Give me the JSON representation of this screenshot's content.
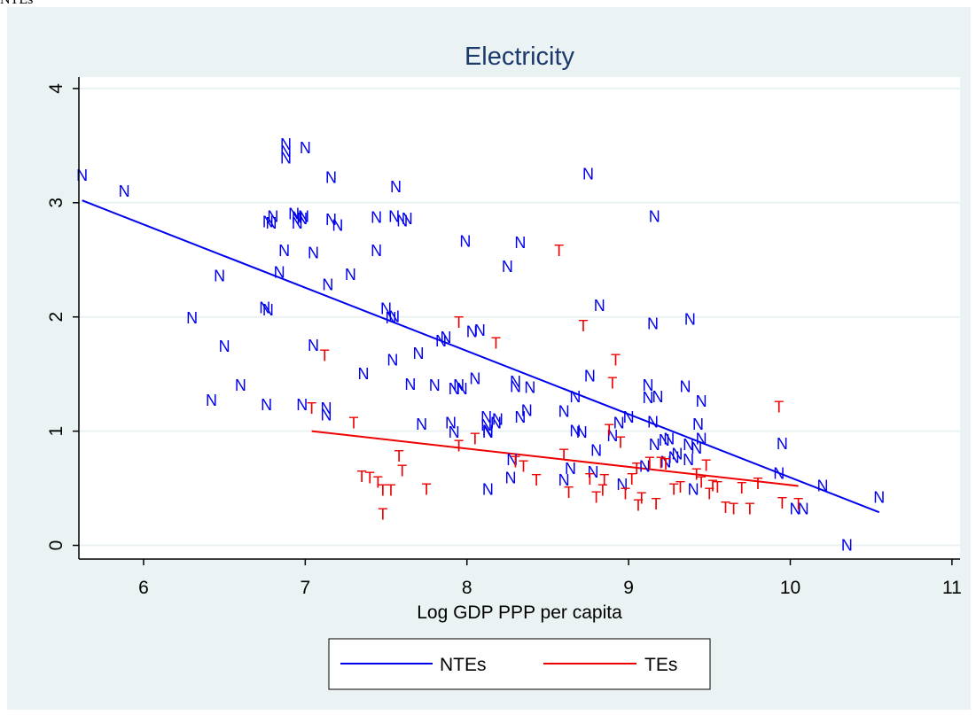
{
  "top_left_text": "NTEs",
  "chart_data": {
    "type": "scatter",
    "title": "Electricity",
    "xlabel": "Log GDP PPP per capita",
    "ylabel": "",
    "xlim": [
      5.6,
      11.05
    ],
    "ylim": [
      -0.12,
      4.1
    ],
    "x_ticks": [
      6,
      7,
      8,
      9,
      10,
      11
    ],
    "y_ticks": [
      0,
      1,
      2,
      3,
      4
    ],
    "grid": true,
    "legend_position": "bottom",
    "colors": {
      "NTEs": "#0000ee",
      "TEs": "#ee0000",
      "plot_region": "#ffffff",
      "outer_background": "#eaf2f3",
      "grid": "#eaf2f3"
    },
    "series": [
      {
        "name": "NTEs",
        "marker": "N",
        "fit_line": {
          "x": [
            5.62,
            10.55
          ],
          "y": [
            3.02,
            0.29
          ]
        },
        "points": [
          [
            5.62,
            3.24
          ],
          [
            5.88,
            3.1
          ],
          [
            6.3,
            1.99
          ],
          [
            6.42,
            1.27
          ],
          [
            6.47,
            2.36
          ],
          [
            6.5,
            1.74
          ],
          [
            6.6,
            1.4
          ],
          [
            6.75,
            2.08
          ],
          [
            6.76,
            1.23
          ],
          [
            6.77,
            2.06
          ],
          [
            6.77,
            2.83
          ],
          [
            6.79,
            2.82
          ],
          [
            6.8,
            2.88
          ],
          [
            6.84,
            2.39
          ],
          [
            6.87,
            2.58
          ],
          [
            6.88,
            3.51
          ],
          [
            6.88,
            3.39
          ],
          [
            6.88,
            3.45
          ],
          [
            6.93,
            2.9
          ],
          [
            6.95,
            2.82
          ],
          [
            6.95,
            2.87
          ],
          [
            6.98,
            1.23
          ],
          [
            6.98,
            2.86
          ],
          [
            6.99,
            2.88
          ],
          [
            7.0,
            3.48
          ],
          [
            7.05,
            2.56
          ],
          [
            7.05,
            1.75
          ],
          [
            7.13,
            1.14
          ],
          [
            7.13,
            1.2
          ],
          [
            7.14,
            2.28
          ],
          [
            7.16,
            3.22
          ],
          [
            7.16,
            2.85
          ],
          [
            7.2,
            2.8
          ],
          [
            7.28,
            2.37
          ],
          [
            7.36,
            1.5
          ],
          [
            7.44,
            2.58
          ],
          [
            7.44,
            2.87
          ],
          [
            7.5,
            2.07
          ],
          [
            7.53,
            1.99
          ],
          [
            7.54,
            1.62
          ],
          [
            7.55,
            2.88
          ],
          [
            7.55,
            2.0
          ],
          [
            7.56,
            3.14
          ],
          [
            7.6,
            2.84
          ],
          [
            7.63,
            2.86
          ],
          [
            7.65,
            1.41
          ],
          [
            7.7,
            1.68
          ],
          [
            7.72,
            1.06
          ],
          [
            7.8,
            1.4
          ],
          [
            7.84,
            1.79
          ],
          [
            7.87,
            1.82
          ],
          [
            7.9,
            1.07
          ],
          [
            7.92,
            0.99
          ],
          [
            7.92,
            1.37
          ],
          [
            7.95,
            1.4
          ],
          [
            7.97,
            1.37
          ],
          [
            7.99,
            2.66
          ],
          [
            8.03,
            1.87
          ],
          [
            8.05,
            1.46
          ],
          [
            8.08,
            1.88
          ],
          [
            8.12,
            1.05
          ],
          [
            8.12,
            1.12
          ],
          [
            8.13,
            0.99
          ],
          [
            8.13,
            1.0
          ],
          [
            8.13,
            0.49
          ],
          [
            8.18,
            1.07
          ],
          [
            8.19,
            1.1
          ],
          [
            8.25,
            2.44
          ],
          [
            8.27,
            0.59
          ],
          [
            8.28,
            0.75
          ],
          [
            8.3,
            1.39
          ],
          [
            8.3,
            1.43
          ],
          [
            8.33,
            2.65
          ],
          [
            8.33,
            1.12
          ],
          [
            8.37,
            1.18
          ],
          [
            8.39,
            1.38
          ],
          [
            8.6,
            1.17
          ],
          [
            8.6,
            0.57
          ],
          [
            8.64,
            0.67
          ],
          [
            8.67,
            1.0
          ],
          [
            8.67,
            1.3
          ],
          [
            8.71,
            0.99
          ],
          [
            8.75,
            3.25
          ],
          [
            8.76,
            1.48
          ],
          [
            8.78,
            0.64
          ],
          [
            8.8,
            0.83
          ],
          [
            8.82,
            2.1
          ],
          [
            8.9,
            0.96
          ],
          [
            8.94,
            1.07
          ],
          [
            8.96,
            0.53
          ],
          [
            9.0,
            1.12
          ],
          [
            9.1,
            0.69
          ],
          [
            9.12,
            1.29
          ],
          [
            9.12,
            1.4
          ],
          [
            9.15,
            1.08
          ],
          [
            9.15,
            1.94
          ],
          [
            9.16,
            2.88
          ],
          [
            9.16,
            0.88
          ],
          [
            9.18,
            1.3
          ],
          [
            9.22,
            0.92
          ],
          [
            9.23,
            0.73
          ],
          [
            9.25,
            0.93
          ],
          [
            9.28,
            0.77
          ],
          [
            9.3,
            0.8
          ],
          [
            9.35,
            1.39
          ],
          [
            9.37,
            0.88
          ],
          [
            9.37,
            0.75
          ],
          [
            9.38,
            1.98
          ],
          [
            9.4,
            0.49
          ],
          [
            9.42,
            0.85
          ],
          [
            9.43,
            1.06
          ],
          [
            9.45,
            1.26
          ],
          [
            9.45,
            0.93
          ],
          [
            9.93,
            0.63
          ],
          [
            9.95,
            0.89
          ],
          [
            10.03,
            0.32
          ],
          [
            10.08,
            0.32
          ],
          [
            10.2,
            0.52
          ],
          [
            10.35,
            0.0
          ],
          [
            10.55,
            0.42
          ]
        ]
      },
      {
        "name": "TEs",
        "marker": "T",
        "fit_line": {
          "x": [
            7.04,
            10.05
          ],
          "y": [
            1.0,
            0.52
          ]
        },
        "points": [
          [
            7.04,
            1.2
          ],
          [
            7.12,
            1.66
          ],
          [
            7.3,
            1.07
          ],
          [
            7.35,
            0.6
          ],
          [
            7.4,
            0.59
          ],
          [
            7.45,
            0.55
          ],
          [
            7.48,
            0.48
          ],
          [
            7.48,
            0.27
          ],
          [
            7.53,
            0.48
          ],
          [
            7.58,
            0.78
          ],
          [
            7.6,
            0.65
          ],
          [
            7.75,
            0.49
          ],
          [
            7.95,
            1.95
          ],
          [
            7.95,
            0.87
          ],
          [
            8.05,
            0.93
          ],
          [
            8.18,
            1.77
          ],
          [
            8.3,
            0.73
          ],
          [
            8.35,
            0.69
          ],
          [
            8.43,
            0.57
          ],
          [
            8.57,
            2.58
          ],
          [
            8.6,
            0.79
          ],
          [
            8.63,
            0.46
          ],
          [
            8.72,
            1.92
          ],
          [
            8.76,
            0.58
          ],
          [
            8.8,
            0.42
          ],
          [
            8.84,
            0.48
          ],
          [
            8.85,
            0.57
          ],
          [
            8.88,
            1.01
          ],
          [
            8.9,
            1.42
          ],
          [
            8.92,
            1.62
          ],
          [
            8.95,
            0.9
          ],
          [
            8.98,
            0.45
          ],
          [
            9.02,
            0.58
          ],
          [
            9.05,
            0.67
          ],
          [
            9.06,
            0.35
          ],
          [
            9.08,
            0.41
          ],
          [
            9.13,
            0.72
          ],
          [
            9.17,
            0.36
          ],
          [
            9.2,
            0.72
          ],
          [
            9.23,
            0.71
          ],
          [
            9.28,
            0.49
          ],
          [
            9.32,
            0.51
          ],
          [
            9.42,
            0.62
          ],
          [
            9.45,
            0.55
          ],
          [
            9.48,
            0.7
          ],
          [
            9.5,
            0.45
          ],
          [
            9.52,
            0.52
          ],
          [
            9.55,
            0.51
          ],
          [
            9.6,
            0.33
          ],
          [
            9.65,
            0.32
          ],
          [
            9.7,
            0.5
          ],
          [
            9.75,
            0.32
          ],
          [
            9.8,
            0.54
          ],
          [
            9.93,
            1.21
          ],
          [
            9.95,
            0.37
          ],
          [
            10.05,
            0.36
          ]
        ]
      }
    ]
  }
}
